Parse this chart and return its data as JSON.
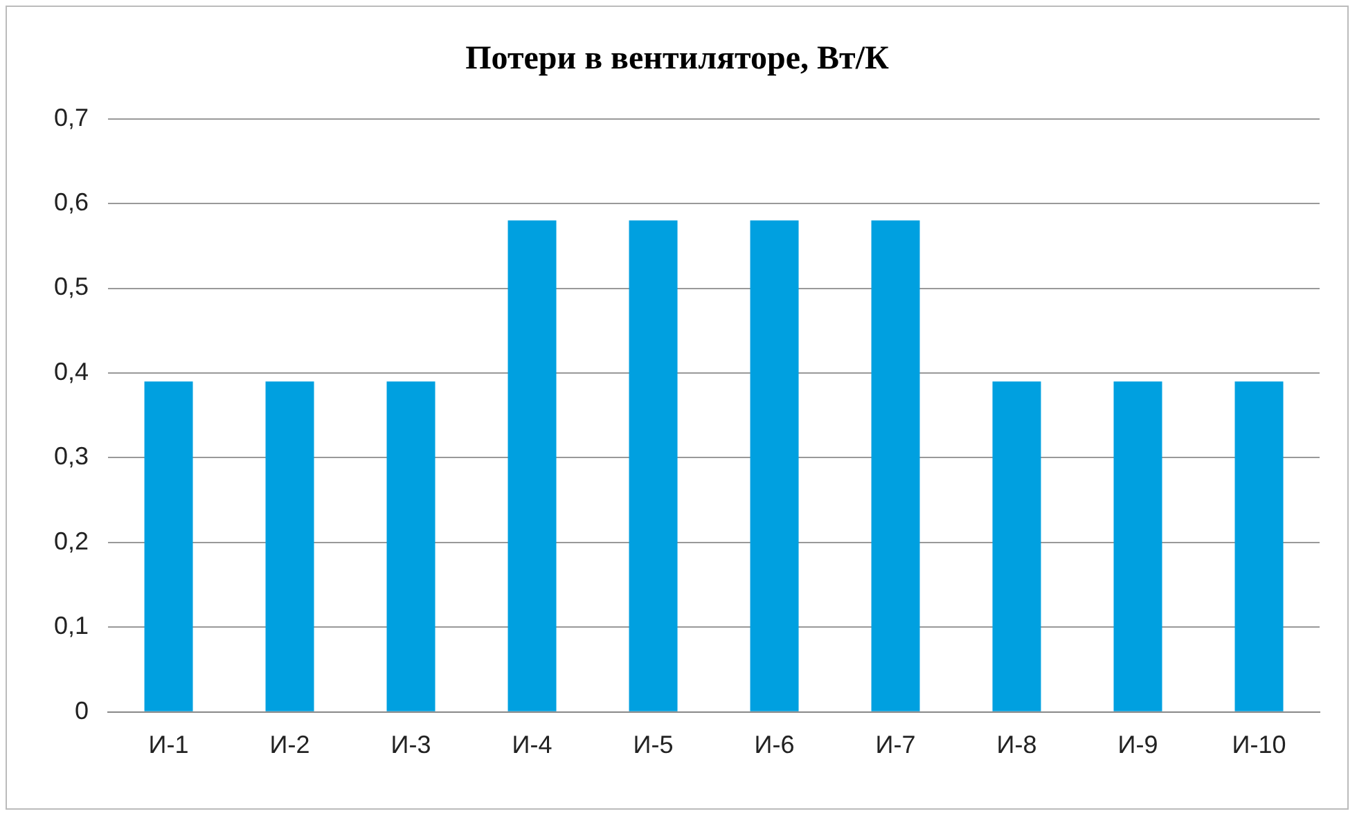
{
  "chart_data": {
    "type": "bar",
    "title": "Потери в вентиляторе, Вт/К",
    "categories": [
      "И-1",
      "И-2",
      "И-3",
      "И-4",
      "И-5",
      "И-6",
      "И-7",
      "И-8",
      "И-9",
      "И-10"
    ],
    "values": [
      0.39,
      0.39,
      0.39,
      0.58,
      0.58,
      0.58,
      0.58,
      0.39,
      0.39,
      0.39
    ],
    "color": "#00a0e0",
    "ylim": [
      0,
      0.7
    ],
    "yticks": [
      {
        "value": 0,
        "label": "0"
      },
      {
        "value": 0.1,
        "label": "0,1"
      },
      {
        "value": 0.2,
        "label": "0,2"
      },
      {
        "value": 0.3,
        "label": "0,3"
      },
      {
        "value": 0.4,
        "label": "0,4"
      },
      {
        "value": 0.5,
        "label": "0,5"
      },
      {
        "value": 0.6,
        "label": "0,6"
      },
      {
        "value": 0.7,
        "label": "0,7"
      }
    ],
    "grid": "y",
    "legend": false
  }
}
